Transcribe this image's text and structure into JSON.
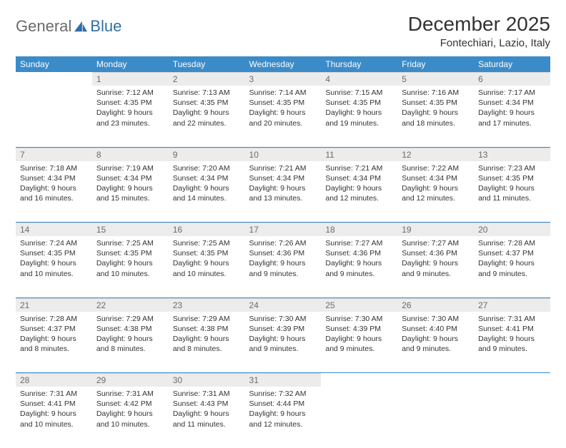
{
  "logo": {
    "general": "General",
    "blue": "Blue"
  },
  "title": "December 2025",
  "location": "Fontechiari, Lazio, Italy",
  "colors": {
    "header_bg": "#3b8bc8",
    "header_text": "#ffffff",
    "daynum_bg": "#ececec",
    "daynum_text": "#6b6b6b",
    "row_border": "#3b8bc8",
    "body_text": "#333333",
    "logo_general": "#6b6b6b",
    "logo_blue": "#2f6fa8"
  },
  "weekdays": [
    "Sunday",
    "Monday",
    "Tuesday",
    "Wednesday",
    "Thursday",
    "Friday",
    "Saturday"
  ],
  "weeks": [
    [
      {
        "n": "",
        "sunrise": "",
        "sunset": "",
        "daylight": ""
      },
      {
        "n": "1",
        "sunrise": "Sunrise: 7:12 AM",
        "sunset": "Sunset: 4:35 PM",
        "daylight": "Daylight: 9 hours and 23 minutes."
      },
      {
        "n": "2",
        "sunrise": "Sunrise: 7:13 AM",
        "sunset": "Sunset: 4:35 PM",
        "daylight": "Daylight: 9 hours and 22 minutes."
      },
      {
        "n": "3",
        "sunrise": "Sunrise: 7:14 AM",
        "sunset": "Sunset: 4:35 PM",
        "daylight": "Daylight: 9 hours and 20 minutes."
      },
      {
        "n": "4",
        "sunrise": "Sunrise: 7:15 AM",
        "sunset": "Sunset: 4:35 PM",
        "daylight": "Daylight: 9 hours and 19 minutes."
      },
      {
        "n": "5",
        "sunrise": "Sunrise: 7:16 AM",
        "sunset": "Sunset: 4:35 PM",
        "daylight": "Daylight: 9 hours and 18 minutes."
      },
      {
        "n": "6",
        "sunrise": "Sunrise: 7:17 AM",
        "sunset": "Sunset: 4:34 PM",
        "daylight": "Daylight: 9 hours and 17 minutes."
      }
    ],
    [
      {
        "n": "7",
        "sunrise": "Sunrise: 7:18 AM",
        "sunset": "Sunset: 4:34 PM",
        "daylight": "Daylight: 9 hours and 16 minutes."
      },
      {
        "n": "8",
        "sunrise": "Sunrise: 7:19 AM",
        "sunset": "Sunset: 4:34 PM",
        "daylight": "Daylight: 9 hours and 15 minutes."
      },
      {
        "n": "9",
        "sunrise": "Sunrise: 7:20 AM",
        "sunset": "Sunset: 4:34 PM",
        "daylight": "Daylight: 9 hours and 14 minutes."
      },
      {
        "n": "10",
        "sunrise": "Sunrise: 7:21 AM",
        "sunset": "Sunset: 4:34 PM",
        "daylight": "Daylight: 9 hours and 13 minutes."
      },
      {
        "n": "11",
        "sunrise": "Sunrise: 7:21 AM",
        "sunset": "Sunset: 4:34 PM",
        "daylight": "Daylight: 9 hours and 12 minutes."
      },
      {
        "n": "12",
        "sunrise": "Sunrise: 7:22 AM",
        "sunset": "Sunset: 4:34 PM",
        "daylight": "Daylight: 9 hours and 12 minutes."
      },
      {
        "n": "13",
        "sunrise": "Sunrise: 7:23 AM",
        "sunset": "Sunset: 4:35 PM",
        "daylight": "Daylight: 9 hours and 11 minutes."
      }
    ],
    [
      {
        "n": "14",
        "sunrise": "Sunrise: 7:24 AM",
        "sunset": "Sunset: 4:35 PM",
        "daylight": "Daylight: 9 hours and 10 minutes."
      },
      {
        "n": "15",
        "sunrise": "Sunrise: 7:25 AM",
        "sunset": "Sunset: 4:35 PM",
        "daylight": "Daylight: 9 hours and 10 minutes."
      },
      {
        "n": "16",
        "sunrise": "Sunrise: 7:25 AM",
        "sunset": "Sunset: 4:35 PM",
        "daylight": "Daylight: 9 hours and 10 minutes."
      },
      {
        "n": "17",
        "sunrise": "Sunrise: 7:26 AM",
        "sunset": "Sunset: 4:36 PM",
        "daylight": "Daylight: 9 hours and 9 minutes."
      },
      {
        "n": "18",
        "sunrise": "Sunrise: 7:27 AM",
        "sunset": "Sunset: 4:36 PM",
        "daylight": "Daylight: 9 hours and 9 minutes."
      },
      {
        "n": "19",
        "sunrise": "Sunrise: 7:27 AM",
        "sunset": "Sunset: 4:36 PM",
        "daylight": "Daylight: 9 hours and 9 minutes."
      },
      {
        "n": "20",
        "sunrise": "Sunrise: 7:28 AM",
        "sunset": "Sunset: 4:37 PM",
        "daylight": "Daylight: 9 hours and 9 minutes."
      }
    ],
    [
      {
        "n": "21",
        "sunrise": "Sunrise: 7:28 AM",
        "sunset": "Sunset: 4:37 PM",
        "daylight": "Daylight: 9 hours and 8 minutes."
      },
      {
        "n": "22",
        "sunrise": "Sunrise: 7:29 AM",
        "sunset": "Sunset: 4:38 PM",
        "daylight": "Daylight: 9 hours and 8 minutes."
      },
      {
        "n": "23",
        "sunrise": "Sunrise: 7:29 AM",
        "sunset": "Sunset: 4:38 PM",
        "daylight": "Daylight: 9 hours and 8 minutes."
      },
      {
        "n": "24",
        "sunrise": "Sunrise: 7:30 AM",
        "sunset": "Sunset: 4:39 PM",
        "daylight": "Daylight: 9 hours and 9 minutes."
      },
      {
        "n": "25",
        "sunrise": "Sunrise: 7:30 AM",
        "sunset": "Sunset: 4:39 PM",
        "daylight": "Daylight: 9 hours and 9 minutes."
      },
      {
        "n": "26",
        "sunrise": "Sunrise: 7:30 AM",
        "sunset": "Sunset: 4:40 PM",
        "daylight": "Daylight: 9 hours and 9 minutes."
      },
      {
        "n": "27",
        "sunrise": "Sunrise: 7:31 AM",
        "sunset": "Sunset: 4:41 PM",
        "daylight": "Daylight: 9 hours and 9 minutes."
      }
    ],
    [
      {
        "n": "28",
        "sunrise": "Sunrise: 7:31 AM",
        "sunset": "Sunset: 4:41 PM",
        "daylight": "Daylight: 9 hours and 10 minutes."
      },
      {
        "n": "29",
        "sunrise": "Sunrise: 7:31 AM",
        "sunset": "Sunset: 4:42 PM",
        "daylight": "Daylight: 9 hours and 10 minutes."
      },
      {
        "n": "30",
        "sunrise": "Sunrise: 7:31 AM",
        "sunset": "Sunset: 4:43 PM",
        "daylight": "Daylight: 9 hours and 11 minutes."
      },
      {
        "n": "31",
        "sunrise": "Sunrise: 7:32 AM",
        "sunset": "Sunset: 4:44 PM",
        "daylight": "Daylight: 9 hours and 12 minutes."
      },
      {
        "n": "",
        "sunrise": "",
        "sunset": "",
        "daylight": ""
      },
      {
        "n": "",
        "sunrise": "",
        "sunset": "",
        "daylight": ""
      },
      {
        "n": "",
        "sunrise": "",
        "sunset": "",
        "daylight": ""
      }
    ]
  ]
}
